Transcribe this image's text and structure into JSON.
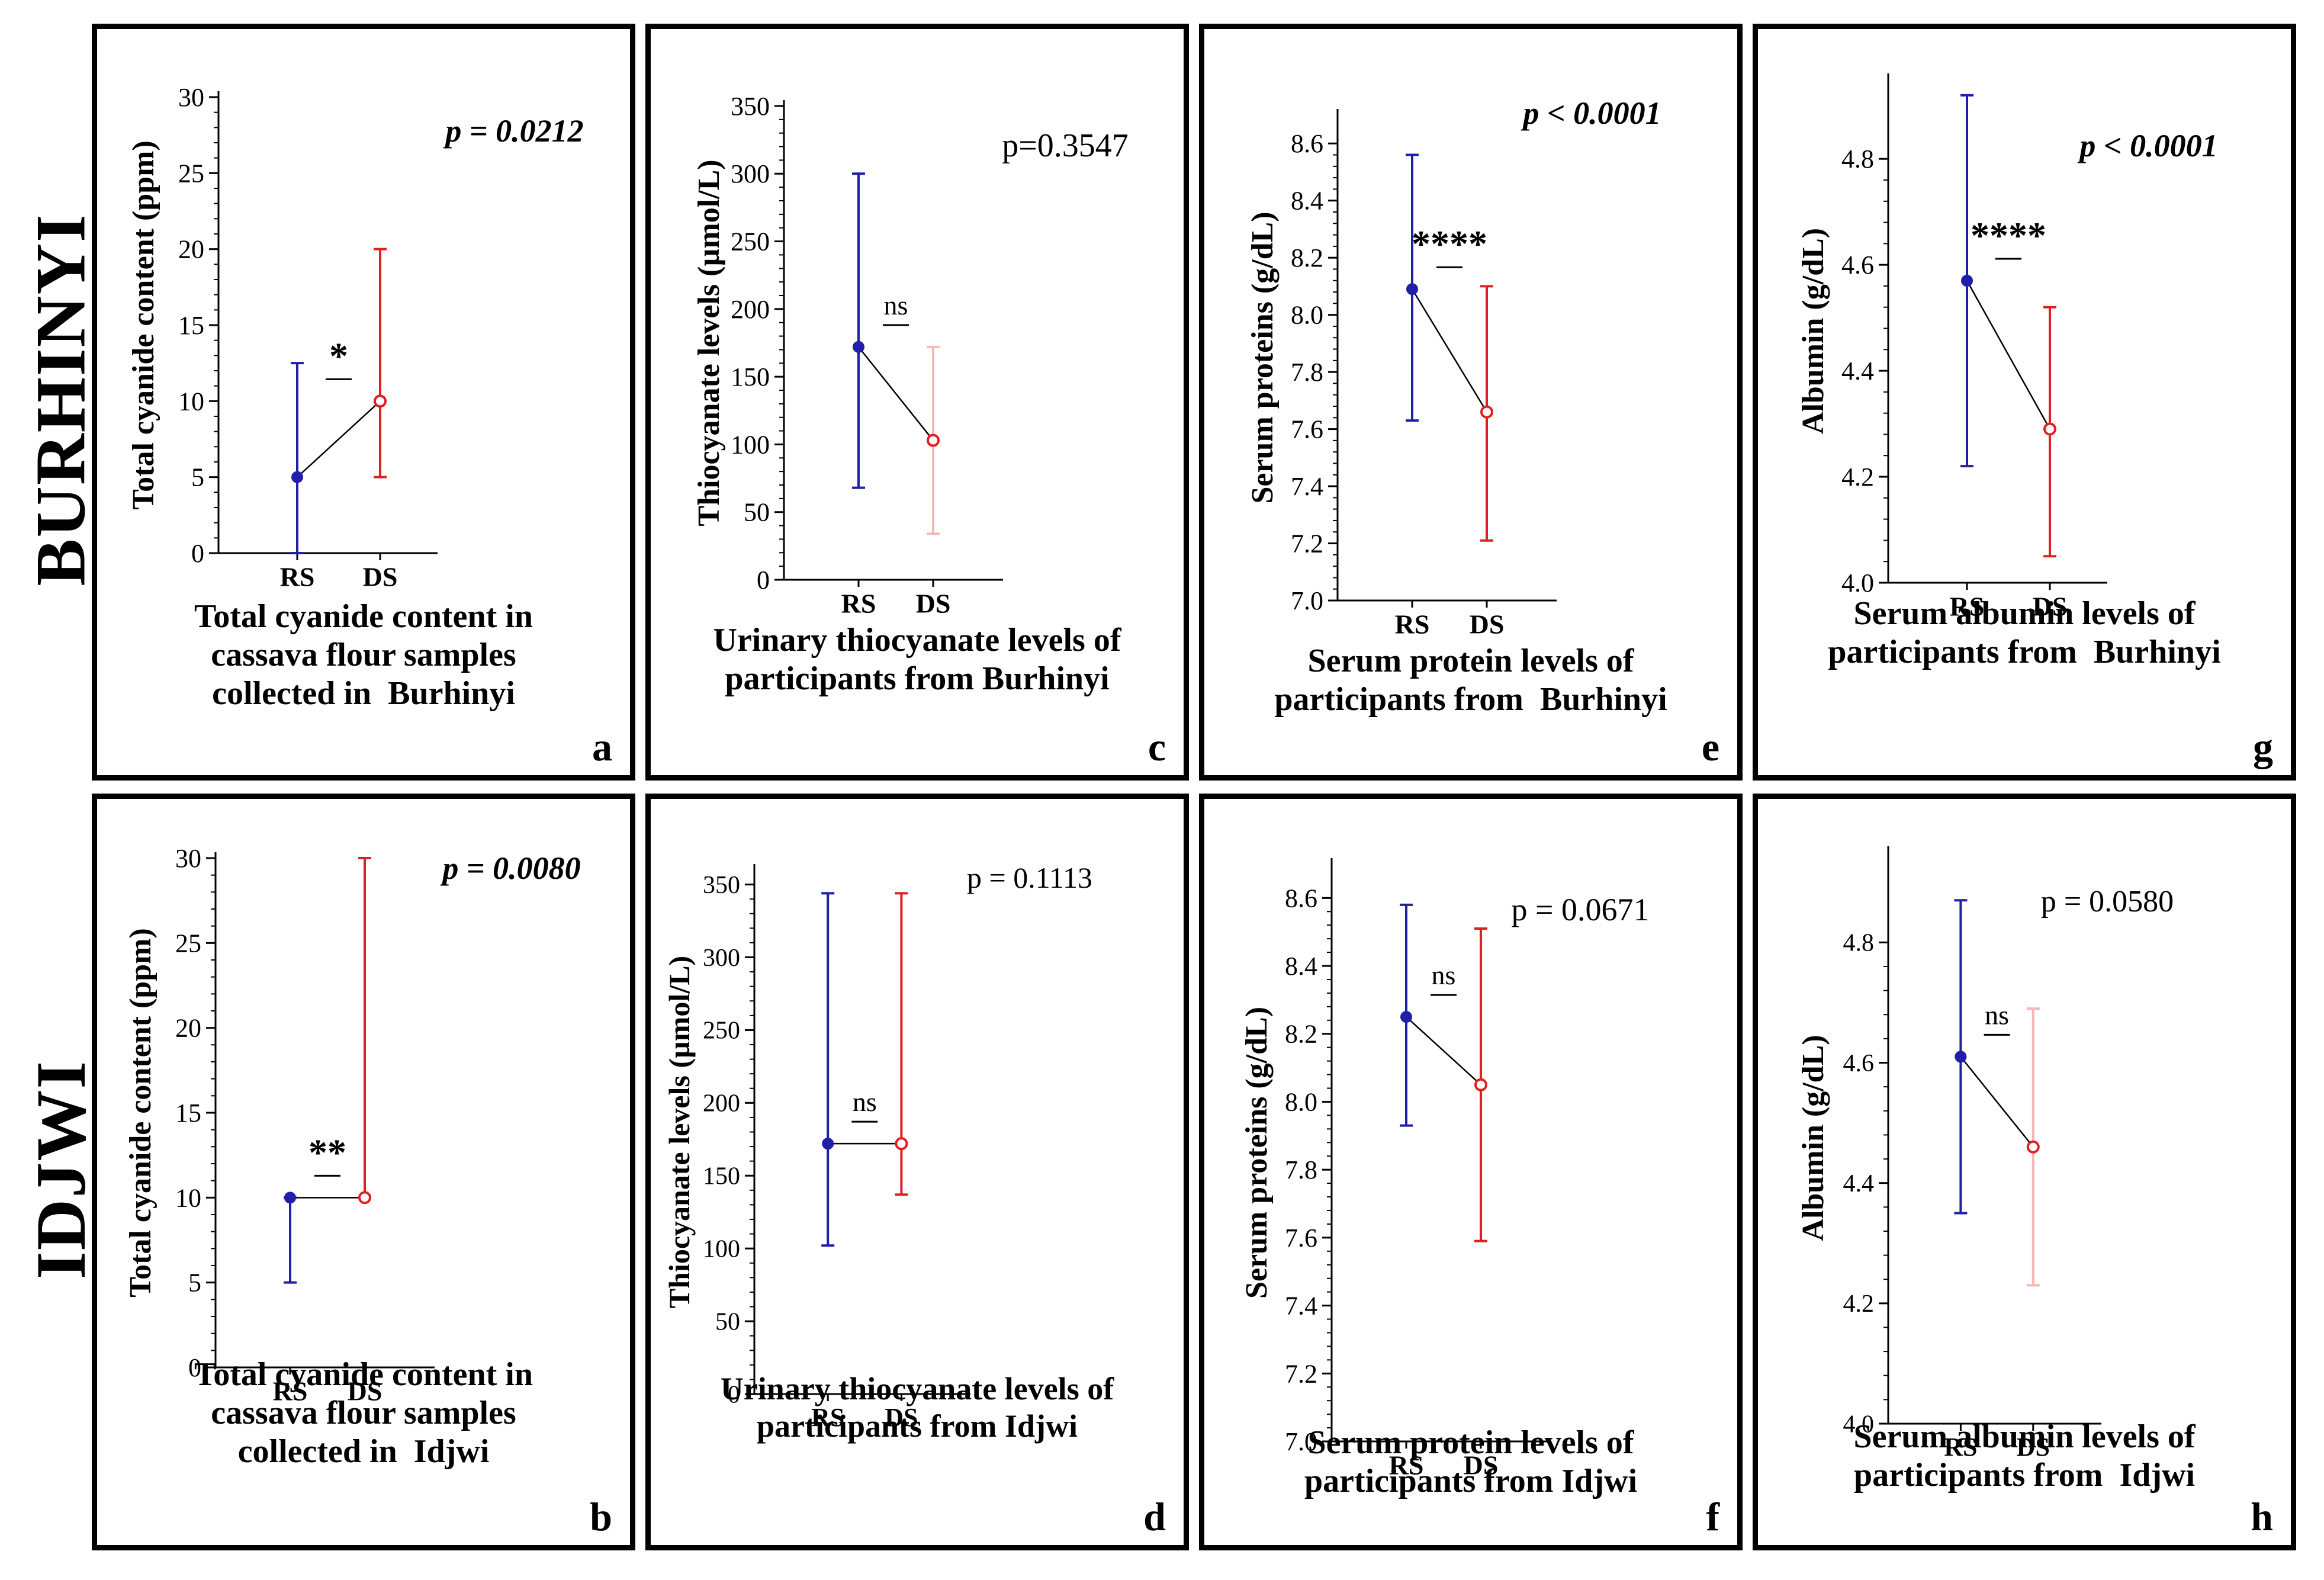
{
  "row_labels": [
    "BURHINYI",
    "IDJWI"
  ],
  "colors": {
    "RS": "#1f1fa8",
    "DS": "#e02020",
    "DS_faint": "#f2b8b8",
    "connector": "#000000"
  },
  "chart_data": [
    {
      "id": "a",
      "letter": "a",
      "type": "line",
      "grid": false,
      "caption": [
        "Total cyanide content in",
        "cassava flour samples",
        "collected in  Burhinyi"
      ],
      "ylabel": "Total cyanide content (ppm)",
      "ylim": [
        0,
        30
      ],
      "yticks": [
        0,
        5,
        10,
        15,
        20,
        25,
        30
      ],
      "ytick_labels": [
        "0",
        "5",
        "10",
        "15",
        "20",
        "25",
        "30"
      ],
      "categories": [
        "RS",
        "DS"
      ],
      "series": [
        {
          "category": "RS",
          "value": 5,
          "err_low": 0,
          "err_high": 12.5,
          "color": "#1f1fa8"
        },
        {
          "category": "DS",
          "value": 10,
          "err_low": 5,
          "err_high": 20,
          "color": "#e02020"
        }
      ],
      "connector": "line",
      "significance": "*",
      "sig_style": "bold",
      "pvalue": "p = 0.0212",
      "p_style": "bold-italic"
    },
    {
      "id": "c",
      "letter": "c",
      "type": "line",
      "grid": false,
      "caption": [
        "Urinary thiocyanate levels of",
        "participants from Burhinyi"
      ],
      "ylabel": "Thiocyanate levels (µmol/L)",
      "ylim": [
        0,
        350
      ],
      "yticks": [
        0,
        50,
        100,
        150,
        200,
        250,
        300,
        350
      ],
      "ytick_labels": [
        "0",
        "50",
        "100",
        "150",
        "200",
        "250",
        "300",
        "350"
      ],
      "categories": [
        "RS",
        "DS"
      ],
      "series": [
        {
          "category": "RS",
          "value": 172,
          "err_low": 68,
          "err_high": 300,
          "color": "#1f1fa8"
        },
        {
          "category": "DS",
          "value": 103,
          "err_low": 34,
          "err_high": 172,
          "color": "#e02020",
          "faint": true
        }
      ],
      "connector": "line",
      "significance": "ns",
      "sig_style": "normal",
      "pvalue": "p=0.3547",
      "p_style": "normal"
    },
    {
      "id": "e",
      "letter": "e",
      "type": "line",
      "grid": false,
      "caption": [
        "Serum protein levels of",
        "participants from  Burhinyi"
      ],
      "ylabel": "Serum proteins (g/dL)",
      "ylim": [
        7.0,
        8.7
      ],
      "yticks": [
        7.0,
        7.2,
        7.4,
        7.6,
        7.8,
        8.0,
        8.2,
        8.4,
        8.6
      ],
      "ytick_labels": [
        "7.0",
        "7.2",
        "7.4",
        "7.6",
        "7.8",
        "8.0",
        "8.2",
        "8.4",
        "8.6"
      ],
      "categories": [
        "RS",
        "DS"
      ],
      "series": [
        {
          "category": "RS",
          "value": 8.09,
          "err_low": 7.63,
          "err_high": 8.56,
          "color": "#1f1fa8"
        },
        {
          "category": "DS",
          "value": 7.66,
          "err_low": 7.21,
          "err_high": 8.1,
          "color": "#e02020"
        }
      ],
      "connector": "line",
      "significance": "****",
      "sig_style": "bold",
      "pvalue": "p < 0.0001",
      "p_style": "bold-italic"
    },
    {
      "id": "g",
      "letter": "g",
      "type": "line",
      "grid": false,
      "caption": [
        "Serum albumin levels of",
        "participants from  Burhinyi"
      ],
      "ylabel": "Albumin (g/dL)",
      "ylim": [
        4.0,
        4.95
      ],
      "yticks": [
        4.0,
        4.2,
        4.4,
        4.6,
        4.8
      ],
      "ytick_labels": [
        "4.0",
        "4.2",
        "4.4",
        "4.6",
        "4.8"
      ],
      "categories": [
        "RS",
        "DS"
      ],
      "series": [
        {
          "category": "RS",
          "value": 4.57,
          "err_low": 4.22,
          "err_high": 4.92,
          "color": "#1f1fa8"
        },
        {
          "category": "DS",
          "value": 4.29,
          "err_low": 4.05,
          "err_high": 4.52,
          "color": "#e02020"
        }
      ],
      "connector": "line",
      "significance": "****",
      "sig_style": "bold",
      "pvalue": "p < 0.0001",
      "p_style": "bold-italic"
    },
    {
      "id": "b",
      "letter": "b",
      "type": "line",
      "grid": false,
      "caption": [
        "Total cyanide content in",
        "cassava flour samples",
        "collected in  Idjwi"
      ],
      "ylabel": "Total cyanide content (ppm)",
      "ylim": [
        0,
        30
      ],
      "yticks": [
        0,
        5,
        10,
        15,
        20,
        25,
        30
      ],
      "ytick_labels": [
        "0",
        "5",
        "10",
        "15",
        "20",
        "25",
        "30"
      ],
      "categories": [
        "RS",
        "DS"
      ],
      "series": [
        {
          "category": "RS",
          "value": 10,
          "err_low": 5,
          "err_high": 10,
          "color": "#1f1fa8"
        },
        {
          "category": "DS",
          "value": 10,
          "err_low": 10,
          "err_high": 30,
          "color": "#e02020"
        }
      ],
      "connector": "line",
      "significance": "**",
      "sig_style": "bold",
      "pvalue": "p = 0.0080",
      "p_style": "bold-italic"
    },
    {
      "id": "d",
      "letter": "d",
      "type": "line",
      "grid": false,
      "caption": [
        "Urinary thiocyanate levels of",
        "participants from Idjwi"
      ],
      "ylabel": "Thiocyanate levels (µmol/L)",
      "ylim": [
        0,
        360
      ],
      "yticks": [
        0,
        50,
        100,
        150,
        200,
        250,
        300,
        350
      ],
      "ytick_labels": [
        "0",
        "50",
        "100",
        "150",
        "200",
        "250",
        "300",
        "350"
      ],
      "categories": [
        "RS",
        "DS"
      ],
      "series": [
        {
          "category": "RS",
          "value": 172,
          "err_low": 102,
          "err_high": 344,
          "color": "#1f1fa8"
        },
        {
          "category": "DS",
          "value": 172,
          "err_low": 137,
          "err_high": 344,
          "color": "#e02020"
        }
      ],
      "connector": "line",
      "significance": "ns",
      "sig_style": "normal",
      "pvalue": "p = 0.1113",
      "p_style": "normal"
    },
    {
      "id": "f",
      "letter": "f",
      "type": "line",
      "grid": false,
      "caption": [
        "Serum protein levels of",
        "participants from Idjwi"
      ],
      "ylabel": "Serum proteins (g/dL)",
      "ylim": [
        7.0,
        8.7
      ],
      "yticks": [
        7.0,
        7.2,
        7.4,
        7.6,
        7.8,
        8.0,
        8.2,
        8.4,
        8.6
      ],
      "ytick_labels": [
        "7.0",
        "7.2",
        "7.4",
        "7.6",
        "7.8",
        "8.0",
        "8.2",
        "8.4",
        "8.6"
      ],
      "categories": [
        "RS",
        "DS"
      ],
      "series": [
        {
          "category": "RS",
          "value": 8.25,
          "err_low": 7.93,
          "err_high": 8.58,
          "color": "#1f1fa8"
        },
        {
          "category": "DS",
          "value": 8.05,
          "err_low": 7.59,
          "err_high": 8.51,
          "color": "#e02020"
        }
      ],
      "connector": "line",
      "significance": "ns",
      "sig_style": "normal",
      "pvalue": "p = 0.0671",
      "p_style": "normal"
    },
    {
      "id": "h",
      "letter": "h",
      "type": "line",
      "grid": false,
      "caption": [
        "Serum albumin levels of",
        "participants from  Idjwi"
      ],
      "ylabel": "Albumin (g/dL)",
      "ylim": [
        4.0,
        4.95
      ],
      "yticks": [
        4.0,
        4.2,
        4.4,
        4.6,
        4.8
      ],
      "ytick_labels": [
        "4.0",
        "4.2",
        "4.4",
        "4.6",
        "4.8"
      ],
      "categories": [
        "RS",
        "DS"
      ],
      "series": [
        {
          "category": "RS",
          "value": 4.61,
          "err_low": 4.35,
          "err_high": 4.87,
          "color": "#1f1fa8"
        },
        {
          "category": "DS",
          "value": 4.46,
          "err_low": 4.23,
          "err_high": 4.69,
          "color": "#e02020",
          "faint": true
        }
      ],
      "connector": "line",
      "significance": "ns",
      "sig_style": "normal",
      "pvalue": "p = 0.0580",
      "p_style": "normal"
    }
  ]
}
